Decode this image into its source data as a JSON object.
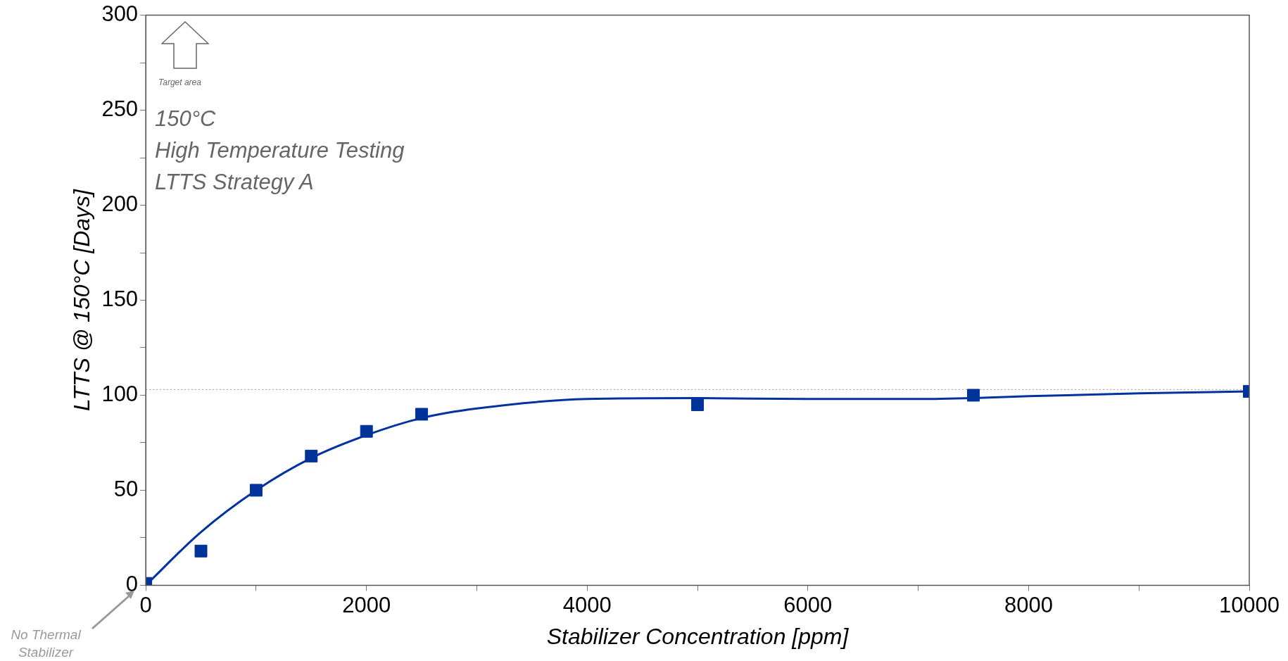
{
  "chart_data": {
    "type": "scatter",
    "xlabel": "Stabilizer Concentration [ppm]",
    "ylabel": "LTTS @ 150°C [Days]",
    "xlim": [
      0,
      10000
    ],
    "xticks": [
      0,
      {
        "value": 1000,
        "label": null
      },
      2000,
      {
        "value": 3000,
        "label": null
      },
      4000,
      {
        "value": 5000,
        "label": null
      },
      6000,
      {
        "value": 7000,
        "label": null
      },
      8000,
      {
        "value": 9000,
        "label": null
      },
      10000
    ],
    "ylim": [
      0,
      300
    ],
    "yticks": [
      0,
      {
        "value": 25,
        "label": null
      },
      50,
      {
        "value": 75,
        "label": null
      },
      100,
      {
        "value": 125,
        "label": null
      },
      150,
      {
        "value": 175,
        "label": null
      },
      200,
      {
        "value": 225,
        "label": null
      },
      250,
      {
        "value": 275,
        "label": null
      },
      300
    ],
    "grid": false,
    "legend": false,
    "series": [
      {
        "color": "#003399",
        "marker": "square",
        "x": [
          0,
          500,
          1000,
          1500,
          2000,
          2500,
          5000,
          7500,
          10000
        ],
        "values": [
          1,
          18,
          50,
          68,
          81,
          90,
          95,
          100,
          102
        ]
      },
      {
        "type": "line",
        "color": "#0033a0",
        "marker": "none",
        "line_style": "solid",
        "x": [
          0,
          500,
          1000,
          1500,
          2000,
          2500,
          3000,
          4000,
          5000,
          6000,
          7000,
          7500,
          8000,
          9000,
          10000
        ],
        "values": [
          0,
          28,
          50,
          67,
          79,
          88,
          93,
          98,
          98.5,
          98,
          98,
          98.5,
          99.5,
          101,
          102
        ]
      }
    ],
    "ref_lines": [
      {
        "axis": "y",
        "value": 103,
        "color": "#999999",
        "line_style": "dotted"
      }
    ],
    "annotations": [
      "150°C",
      "High Temperature Testing",
      "LTTS Strategy A",
      "Target area",
      "No Thermal Stabilizer"
    ]
  }
}
